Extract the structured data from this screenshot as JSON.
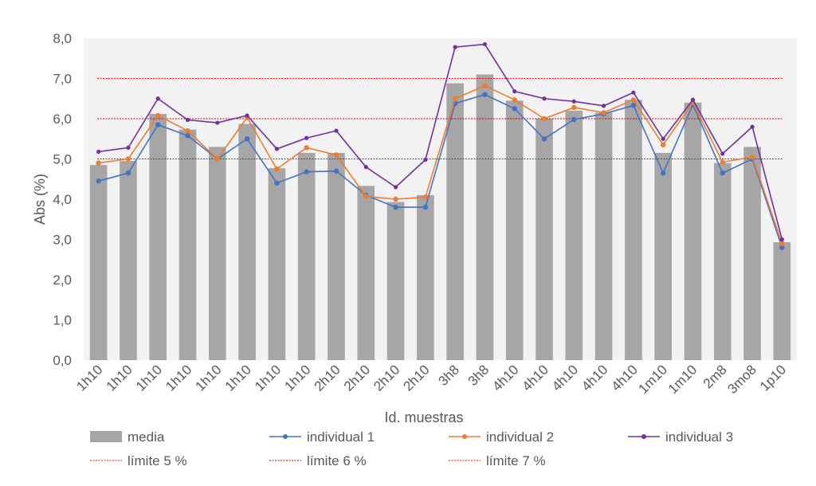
{
  "chart_data": {
    "type": "bar+line",
    "title": "",
    "xlabel": "Id. muestras",
    "ylabel": "Abs (%)",
    "ylim": [
      0,
      8
    ],
    "yticks": [
      "0,0",
      "1,0",
      "2,0",
      "3,0",
      "4,0",
      "5,0",
      "6,0",
      "7,0",
      "8,0"
    ],
    "categories": [
      "1h10",
      "1h10",
      "1h10",
      "1h10",
      "1h10",
      "1h10",
      "1h10",
      "1h10",
      "2h10",
      "2h10",
      "2h10",
      "2h10",
      "3h8",
      "3h8",
      "4h10",
      "4h10",
      "4h10",
      "4h10",
      "4h10",
      "1m10",
      "1m10",
      "2m8",
      "3mo8",
      "1p10"
    ],
    "bars": {
      "name": "media",
      "color": "#a6a6a6",
      "values": [
        4.85,
        4.95,
        6.12,
        5.73,
        5.3,
        5.87,
        4.77,
        5.15,
        5.15,
        4.33,
        3.93,
        4.1,
        6.88,
        7.1,
        6.45,
        6.0,
        6.2,
        6.15,
        6.47,
        5.15,
        6.4,
        4.9,
        5.3,
        2.93
      ]
    },
    "series": [
      {
        "name": "individual 1",
        "color": "#4472c4",
        "values": [
          4.45,
          4.65,
          5.85,
          5.58,
          5.0,
          5.5,
          4.4,
          4.68,
          4.7,
          4.1,
          3.8,
          3.8,
          6.38,
          6.6,
          6.25,
          5.5,
          5.98,
          6.12,
          6.33,
          4.65,
          6.35,
          4.65,
          5.0,
          2.8
        ]
      },
      {
        "name": "individual 2",
        "color": "#ed7d31",
        "values": [
          4.9,
          5.0,
          6.08,
          5.7,
          5.0,
          6.03,
          4.75,
          5.28,
          5.1,
          4.07,
          4.0,
          4.05,
          6.5,
          6.82,
          6.47,
          6.0,
          6.28,
          6.15,
          6.47,
          5.35,
          6.4,
          4.92,
          5.05,
          2.9
        ]
      },
      {
        "name": "individual 3",
        "color": "#7030a0",
        "values": [
          5.18,
          5.28,
          6.5,
          5.97,
          5.9,
          6.08,
          5.25,
          5.52,
          5.7,
          4.8,
          4.3,
          4.98,
          7.78,
          7.85,
          6.68,
          6.5,
          6.43,
          6.32,
          6.65,
          5.5,
          6.47,
          5.13,
          5.8,
          3.0
        ]
      }
    ],
    "limits": [
      {
        "name": "límite 5 %",
        "value": 5,
        "color": "#ff0000"
      },
      {
        "name": "límite 6 %",
        "value": 6,
        "color": "#c00000"
      },
      {
        "name": "límite 7 %",
        "value": 7,
        "color": "#ff0000"
      }
    ],
    "grid": false,
    "legend_placement": "bottom"
  }
}
